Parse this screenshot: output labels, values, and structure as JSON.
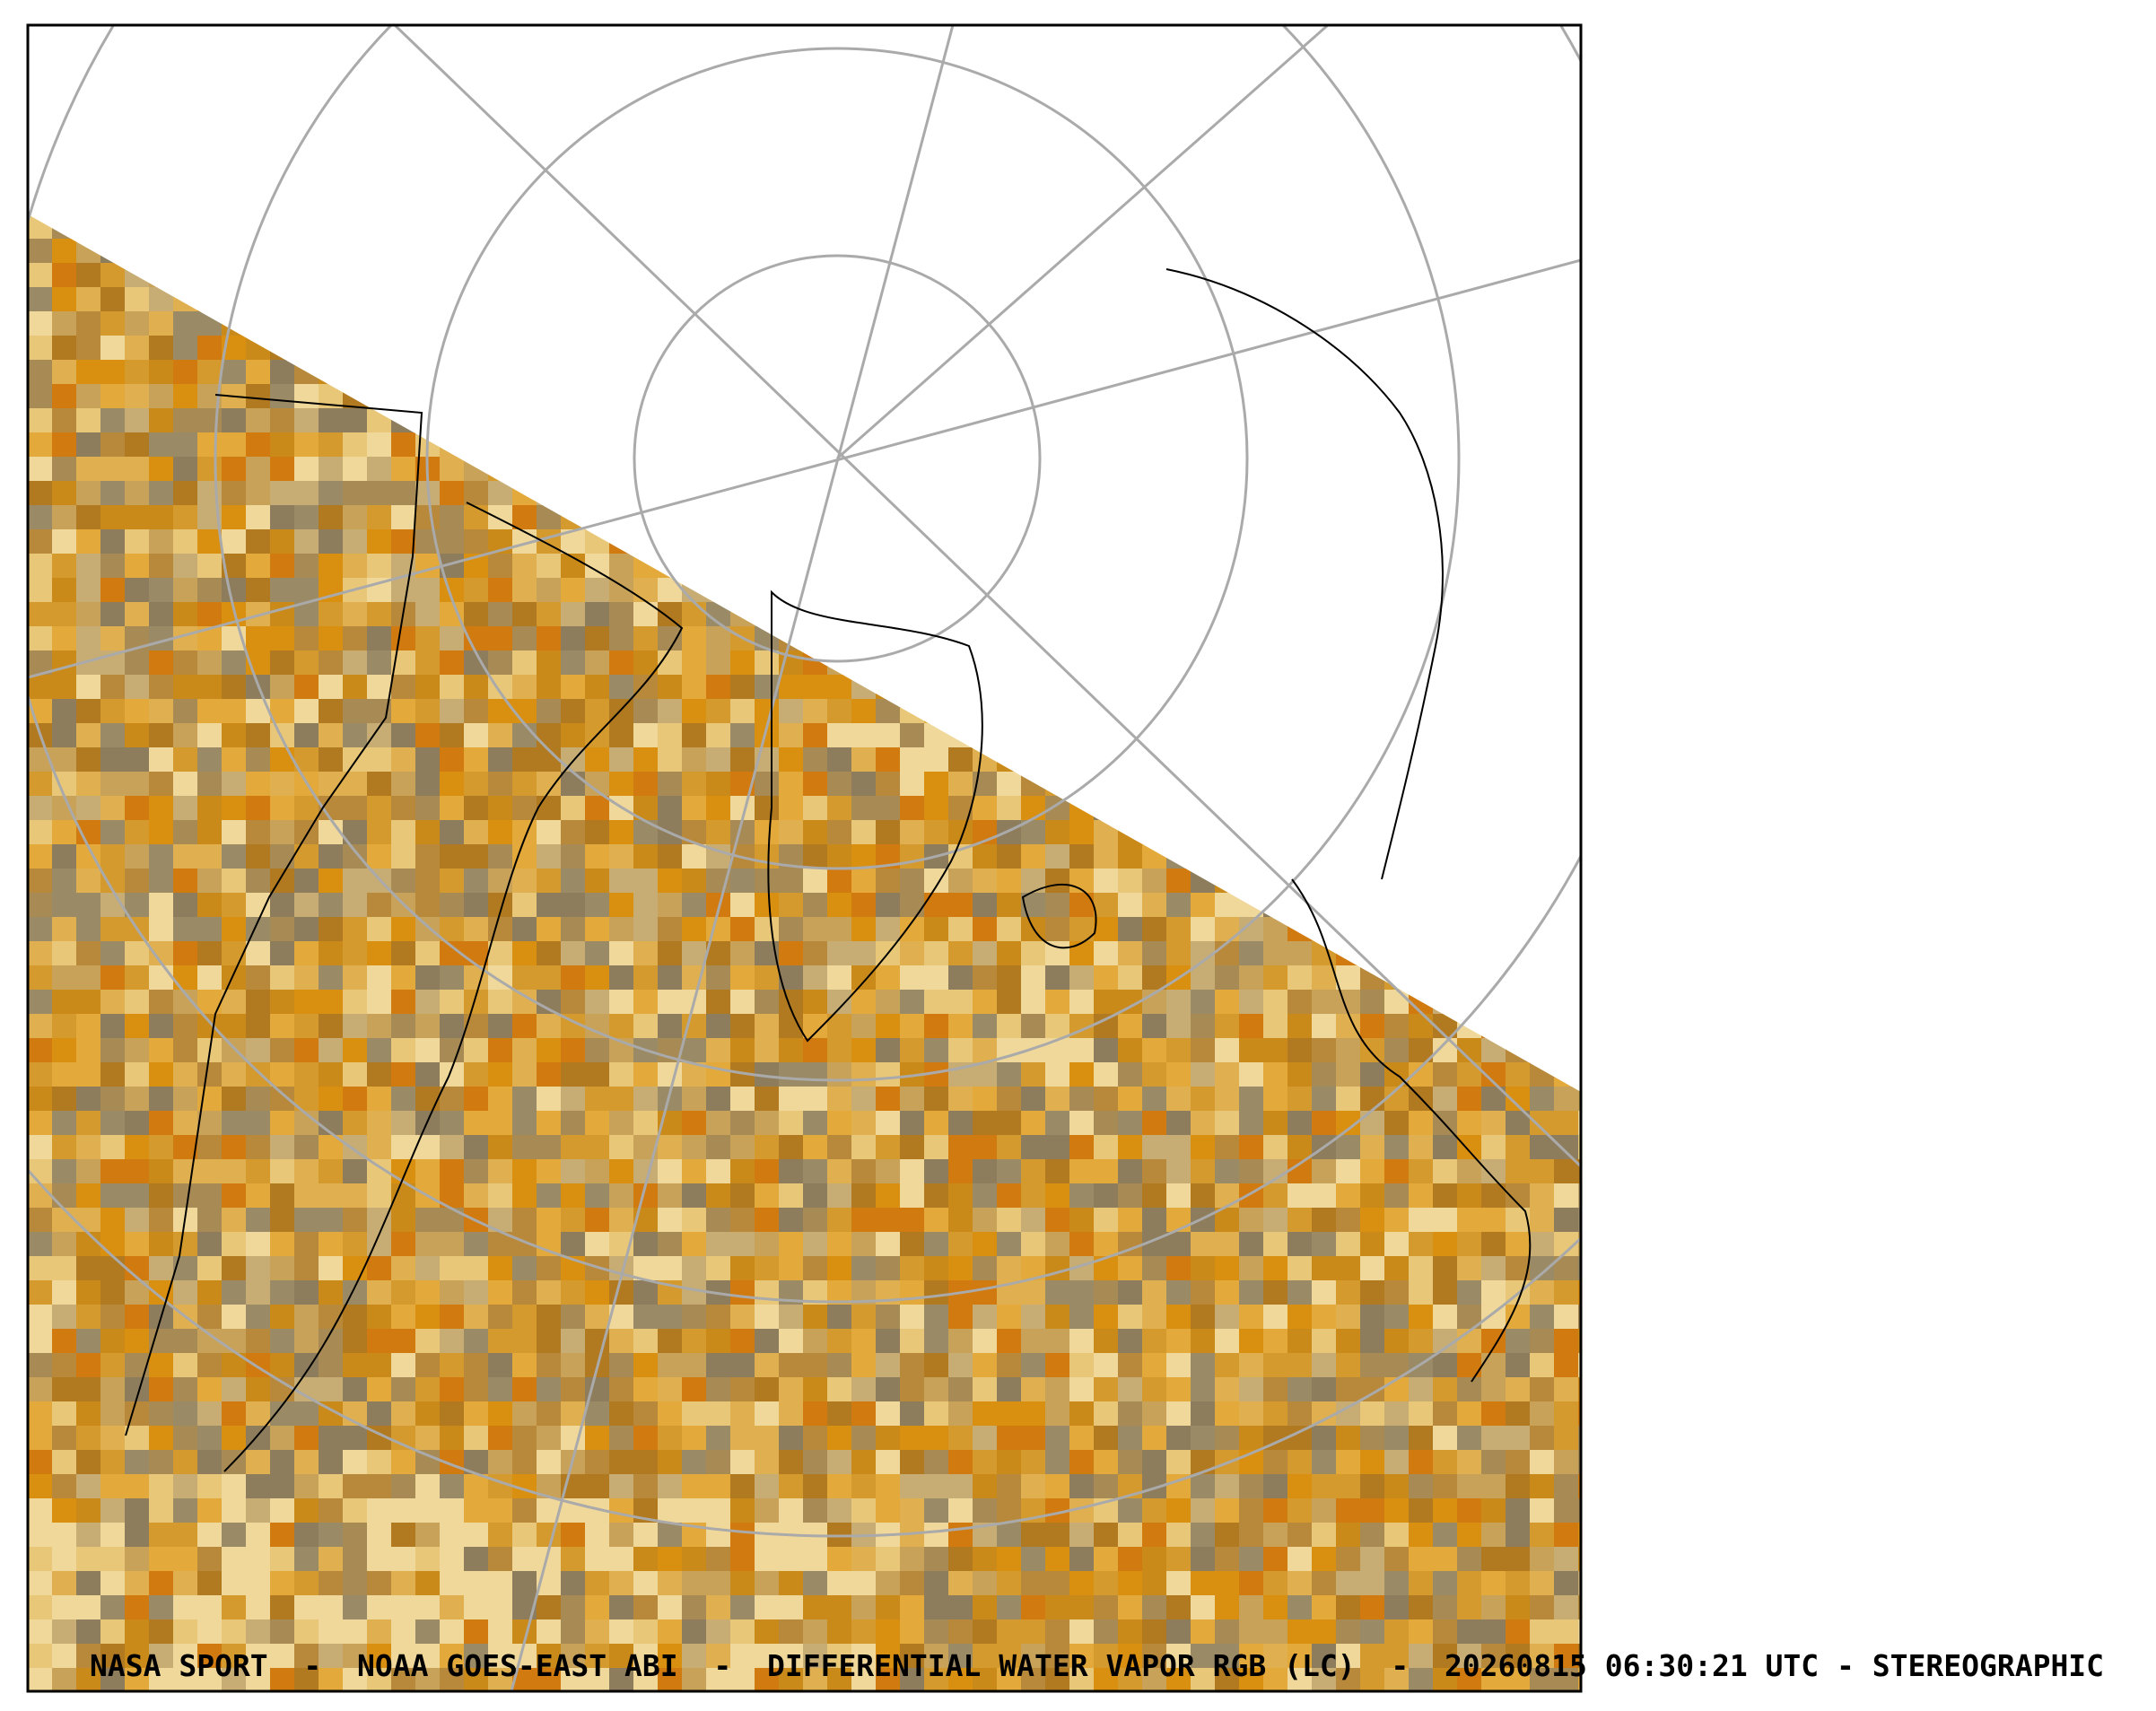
{
  "caption": "NASA SPORT  -  NOAA GOES-EAST ABI  -  DIFFERENTIAL WATER VAPOR RGB (LC)  -  20260815 06:30:21 UTC - STEREOGRAPHIC"
}
